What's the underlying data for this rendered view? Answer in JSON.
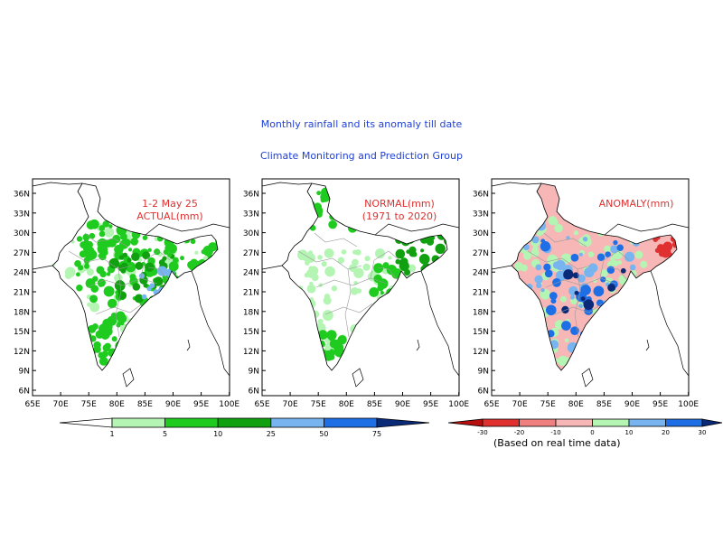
{
  "header": {
    "title": "Monthly rainfall and its anomaly till date",
    "subtitle": "Climate Monitoring and Prediction Group"
  },
  "axes": {
    "lat_labels": [
      "36N",
      "33N",
      "30N",
      "27N",
      "24N",
      "21N",
      "18N",
      "15N",
      "12N",
      "9N",
      "6N"
    ],
    "lon_labels": [
      "65E",
      "70E",
      "75E",
      "80E",
      "85E",
      "90E",
      "95E",
      "100E"
    ]
  },
  "panels": [
    {
      "id": "actual",
      "label_lines": [
        "1-2 May 25",
        "ACTUAL(mm)"
      ]
    },
    {
      "id": "normal",
      "label_lines": [
        "NORMAL(mm)",
        "(1971 to 2020)"
      ]
    },
    {
      "id": "anomaly",
      "label_lines": [
        "ANOMALY(mm)"
      ]
    }
  ],
  "colors": {
    "title": "#1f3fd6",
    "panel_label": "#e03030",
    "land_outline": "#000000",
    "state_border": "#9a9a9a"
  },
  "rainfall_legend": {
    "labels": [
      "1",
      "5",
      "10",
      "25",
      "50",
      "75"
    ],
    "colors": [
      "#ffffff",
      "#b4f5b4",
      "#1ecb1e",
      "#10a010",
      "#78b4f0",
      "#1e6ee6",
      "#0a2a78"
    ]
  },
  "anomaly_legend": {
    "labels": [
      "-30",
      "-20",
      "-10",
      "0",
      "10",
      "20",
      "30"
    ],
    "colors": [
      "#b81010",
      "#e03030",
      "#f08080",
      "#f7b7b7",
      "#b4f5b4",
      "#78b4f0",
      "#1e6ee6",
      "#0a2a78"
    ],
    "note": "(Based on real time data)"
  }
}
